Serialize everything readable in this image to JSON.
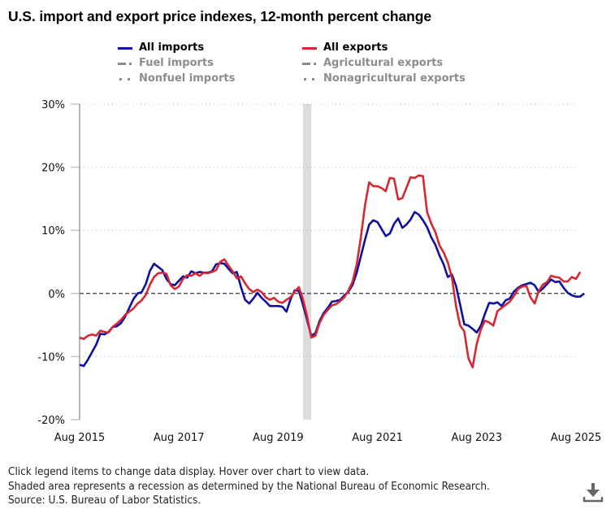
{
  "title": "U.S. import and export price indexes, 12-month percent change",
  "legend": {
    "left": [
      {
        "label": "All imports",
        "style": "solid",
        "color": "#1010a0",
        "active": true
      },
      {
        "label": "Fuel imports",
        "style": "dash-dot",
        "color": "#8c8c8c",
        "active": false
      },
      {
        "label": "Nonfuel imports",
        "style": "dot",
        "color": "#8c8c8c",
        "active": false
      }
    ],
    "right": [
      {
        "label": "All exports",
        "style": "solid",
        "color": "#d62832",
        "active": true
      },
      {
        "label": "Agricultural exports",
        "style": "dash-dot",
        "color": "#8c8c8c",
        "active": false
      },
      {
        "label": "Nonagricultural exports",
        "style": "dot",
        "color": "#8c8c8c",
        "active": false
      }
    ]
  },
  "footer": {
    "line1": "Click legend items to change data display. Hover over chart to view data.",
    "line2": "Shaded area represents a recession as determined by the National Bureau of Economic Research.",
    "line3": "Source: U.S. Bureau of Labor Statistics."
  },
  "download_icon": "download-icon",
  "chart_data": {
    "type": "line",
    "title": "U.S. import and export price indexes, 12-month percent change",
    "xlabel": "",
    "ylabel": "",
    "x_start": "Aug 2015",
    "x_end": "Aug 2025",
    "frequency": "monthly",
    "x_tick_labels": [
      "Aug 2015",
      "Aug 2017",
      "Aug 2019",
      "Aug 2021",
      "Aug 2023",
      "Aug 2025"
    ],
    "y_tick_labels": [
      "30%",
      "20%",
      "10%",
      "0%",
      "-10%",
      "-20%"
    ],
    "y_ticks": [
      30,
      20,
      10,
      0,
      -10,
      -20
    ],
    "ylim": [
      -20,
      30
    ],
    "grid": "horizontal-dotted",
    "zero_line": "dashed",
    "recession_shading": {
      "start": "Feb 2020",
      "end": "Apr 2020"
    },
    "legend_position": "top",
    "series": [
      {
        "name": "All imports",
        "color": "#1010a0",
        "values": [
          -11.3,
          -11.5,
          -10.5,
          -9.3,
          -8.1,
          -6.4,
          -6.5,
          -6.1,
          -5.3,
          -5.2,
          -4.7,
          -3.7,
          -2.3,
          -0.9,
          0.0,
          0.2,
          1.5,
          3.6,
          4.7,
          4.2,
          3.7,
          2.3,
          1.5,
          1.3,
          2.0,
          2.7,
          2.5,
          3.5,
          3.2,
          3.4,
          3.3,
          3.3,
          3.5,
          4.6,
          4.8,
          4.7,
          3.9,
          3.2,
          3.4,
          1.0,
          -1.0,
          -1.6,
          -0.8,
          0.1,
          -0.7,
          -1.3,
          -2.0,
          -2.0,
          -2.0,
          -2.1,
          -2.9,
          -0.9,
          0.5,
          0.4,
          -1.8,
          -4.2,
          -6.7,
          -6.3,
          -4.4,
          -3.1,
          -2.3,
          -1.3,
          -1.2,
          -1.0,
          -0.3,
          0.3,
          1.4,
          3.3,
          5.9,
          8.5,
          10.9,
          11.6,
          11.3,
          10.2,
          9.1,
          9.5,
          11.0,
          11.9,
          10.4,
          10.9,
          11.7,
          12.9,
          12.5,
          11.6,
          10.5,
          8.9,
          7.7,
          6.0,
          4.6,
          2.6,
          3.0,
          1.2,
          -1.8,
          -4.9,
          -5.1,
          -5.6,
          -6.2,
          -5.1,
          -3.2,
          -1.5,
          -1.6,
          -1.4,
          -2.0,
          -1.1,
          -0.8,
          0.3,
          0.9,
          1.3,
          1.5,
          1.7,
          1.3,
          0.2,
          0.8,
          1.5,
          2.2,
          1.8,
          1.9,
          0.9,
          0.1,
          -0.3,
          -0.5,
          -0.5,
          0.0
        ]
      },
      {
        "name": "All exports",
        "color": "#d62832",
        "values": [
          -7.0,
          -7.2,
          -6.7,
          -6.5,
          -6.7,
          -5.9,
          -6.1,
          -6.2,
          -5.3,
          -4.8,
          -4.2,
          -3.4,
          -2.9,
          -2.4,
          -1.6,
          -1.1,
          -0.2,
          1.4,
          2.6,
          3.2,
          3.3,
          3.1,
          1.3,
          0.7,
          1.1,
          2.3,
          2.9,
          2.8,
          3.2,
          2.8,
          3.3,
          3.2,
          3.4,
          3.7,
          5.0,
          5.4,
          4.4,
          3.5,
          2.4,
          2.7,
          1.6,
          0.7,
          0.2,
          0.6,
          0.2,
          -0.6,
          -1.0,
          -0.7,
          -1.3,
          -1.5,
          -1.0,
          -0.6,
          0.3,
          1.0,
          -0.9,
          -3.6,
          -7.0,
          -6.7,
          -4.7,
          -3.4,
          -2.6,
          -1.9,
          -1.7,
          -1.2,
          -0.6,
          0.5,
          1.9,
          4.6,
          8.9,
          14.0,
          17.6,
          17.0,
          17.0,
          16.7,
          16.2,
          18.3,
          18.2,
          14.9,
          15.1,
          16.7,
          18.4,
          18.3,
          18.7,
          18.6,
          12.9,
          11.1,
          9.7,
          7.6,
          6.5,
          4.9,
          2.5,
          -2.0,
          -5.1,
          -6.0,
          -10.3,
          -11.7,
          -8.0,
          -5.7,
          -4.3,
          -4.6,
          -5.1,
          -2.8,
          -2.3,
          -1.8,
          -1.3,
          -0.4,
          0.7,
          1.1,
          1.2,
          -0.6,
          -1.6,
          0.4,
          1.4,
          1.8,
          2.8,
          2.6,
          2.5,
          1.9,
          1.9,
          2.6,
          2.3,
          3.4
        ]
      }
    ]
  }
}
